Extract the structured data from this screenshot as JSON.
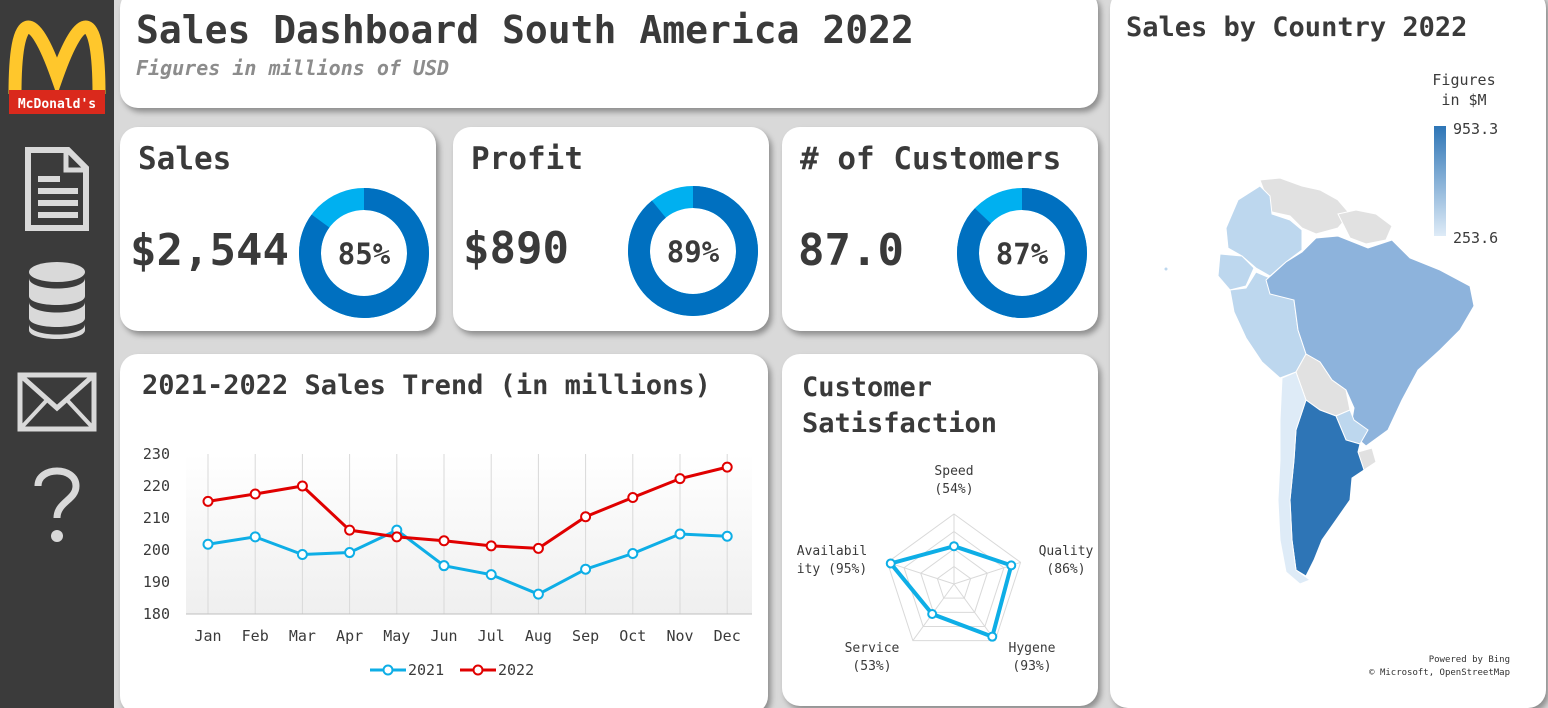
{
  "sidebar": {
    "logo_text": "McDonald's",
    "icons": [
      "report-icon",
      "database-icon",
      "mail-icon",
      "help-icon"
    ]
  },
  "header": {
    "title": "Sales Dashboard South America 2022",
    "subtitle": "Figures in millions of USD"
  },
  "kpis": [
    {
      "label": "Sales",
      "value": "$2,544",
      "percent": 85,
      "percent_label": "85%"
    },
    {
      "label": "Profit",
      "value": "$890",
      "percent": 89,
      "percent_label": "89%"
    },
    {
      "label": "# of Customers",
      "value": "87.0",
      "percent": 87,
      "percent_label": "87%"
    }
  ],
  "colors": {
    "donut_fill": "#0070c0",
    "donut_rest": "#00b0f0",
    "series_2021": "#0eaee6",
    "series_2022": "#e00000",
    "map_high": "#2e75b6",
    "map_low": "#deebf7",
    "map_nodata": "#e1e1e1"
  },
  "chart_data": [
    {
      "type": "line",
      "title": "2021-2022 Sales Trend (in millions)",
      "categories": [
        "Jan",
        "Feb",
        "Mar",
        "Apr",
        "May",
        "Jun",
        "Jul",
        "Aug",
        "Sep",
        "Oct",
        "Nov",
        "Dec"
      ],
      "series": [
        {
          "name": "2021",
          "values": [
            201.8,
            204.1,
            198.6,
            199.2,
            206.2,
            195.1,
            192.3,
            186.2,
            194.0,
            198.9,
            205.0,
            204.3
          ]
        },
        {
          "name": "2022",
          "values": [
            215.2,
            217.5,
            220.0,
            206.2,
            204.1,
            202.9,
            201.3,
            200.5,
            210.4,
            216.4,
            222.3,
            225.9
          ]
        }
      ],
      "yticks": [
        "230",
        "220",
        "210",
        "200",
        "190",
        "180"
      ],
      "ylim": [
        180,
        230
      ],
      "legend": "bottom"
    },
    {
      "type": "radar",
      "title": "Customer Satisfaction",
      "axes": [
        {
          "name": "Speed",
          "label": "(54%)",
          "value": 54
        },
        {
          "name": "Quality",
          "label": "(86%)",
          "value": 86
        },
        {
          "name": "Hygene",
          "label": "(93%)",
          "value": 93
        },
        {
          "name": "Service",
          "label": "(53%)",
          "value": 53
        },
        {
          "name": "Availabil",
          "name2": "ity (95%)",
          "value": 95
        }
      ],
      "max": 100
    },
    {
      "type": "map",
      "title": "Sales by Country 2022",
      "legend_title_1": "Figures",
      "legend_title_2": "in $M",
      "legend_max": "953.3",
      "legend_min": "253.6",
      "attribution_1": "Powered by Bing",
      "attribution_2": "© Microsoft, OpenStreetMap"
    }
  ]
}
